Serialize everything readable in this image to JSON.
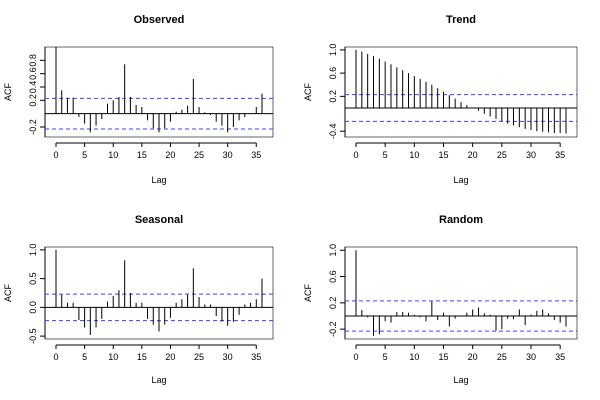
{
  "colors": {
    "spike": "#000000",
    "zero_line": "#000000",
    "confidence": "#4040ff",
    "frame": "#000000"
  },
  "chart_data": [
    {
      "type": "bar",
      "title": "Observed",
      "xlabel": "Lag",
      "ylabel": "ACF",
      "xlim": [
        0,
        36
      ],
      "ylim": [
        -0.35,
        1.0
      ],
      "x_ticks": [
        0,
        5,
        10,
        15,
        20,
        25,
        30,
        35
      ],
      "y_ticks": [
        -0.2,
        0.2,
        0.4,
        0.6,
        0.8
      ],
      "y_tick_labels": [
        "-0.2",
        "0.2",
        "0.4",
        "0.6",
        "0.8"
      ],
      "confidence_band": 0.23,
      "lags": [
        0,
        1,
        2,
        3,
        4,
        5,
        6,
        7,
        8,
        9,
        10,
        11,
        12,
        13,
        14,
        15,
        16,
        17,
        18,
        19,
        20,
        21,
        22,
        23,
        24,
        25,
        26,
        27,
        28,
        29,
        30,
        31,
        32,
        33,
        34,
        35,
        36
      ],
      "values": [
        1.0,
        0.35,
        0.24,
        0.24,
        -0.05,
        -0.15,
        -0.28,
        -0.18,
        -0.08,
        0.15,
        0.2,
        0.25,
        0.74,
        0.25,
        0.13,
        0.1,
        -0.1,
        -0.22,
        -0.28,
        -0.22,
        -0.12,
        0.03,
        0.06,
        0.12,
        0.52,
        0.1,
        0.02,
        -0.02,
        -0.12,
        -0.18,
        -0.28,
        -0.2,
        -0.1,
        -0.05,
        0.0,
        0.1,
        0.3
      ]
    },
    {
      "type": "bar",
      "title": "Trend",
      "xlabel": "Lag",
      "ylabel": "ACF",
      "xlim": [
        0,
        36
      ],
      "ylim": [
        -0.5,
        1.05
      ],
      "x_ticks": [
        0,
        5,
        10,
        15,
        20,
        25,
        30,
        35
      ],
      "y_ticks": [
        -0.4,
        0.2,
        0.6,
        1.0
      ],
      "y_tick_labels": [
        "-0.4",
        "0.2",
        "0.6",
        "1.0"
      ],
      "confidence_band": 0.23,
      "lags": [
        0,
        1,
        2,
        3,
        4,
        5,
        6,
        7,
        8,
        9,
        10,
        11,
        12,
        13,
        14,
        15,
        16,
        17,
        18,
        19,
        20,
        21,
        22,
        23,
        24,
        25,
        26,
        27,
        28,
        29,
        30,
        31,
        32,
        33,
        34,
        35,
        36
      ],
      "values": [
        1.0,
        0.97,
        0.93,
        0.89,
        0.85,
        0.8,
        0.75,
        0.7,
        0.65,
        0.6,
        0.55,
        0.5,
        0.45,
        0.4,
        0.34,
        0.28,
        0.22,
        0.16,
        0.1,
        0.05,
        0.0,
        -0.05,
        -0.1,
        -0.15,
        -0.19,
        -0.23,
        -0.27,
        -0.3,
        -0.33,
        -0.36,
        -0.38,
        -0.4,
        -0.41,
        -0.42,
        -0.43,
        -0.43,
        -0.44
      ]
    },
    {
      "type": "bar",
      "title": "Seasonal",
      "xlabel": "Lag",
      "ylabel": "ACF",
      "xlim": [
        0,
        36
      ],
      "ylim": [
        -0.55,
        1.05
      ],
      "x_ticks": [
        0,
        5,
        10,
        15,
        20,
        25,
        30,
        35
      ],
      "y_ticks": [
        -0.5,
        0.0,
        0.5,
        1.0
      ],
      "y_tick_labels": [
        "-0.5",
        "0.0",
        "0.5",
        "1.0"
      ],
      "confidence_band": 0.23,
      "lags": [
        0,
        1,
        2,
        3,
        4,
        5,
        6,
        7,
        8,
        9,
        10,
        11,
        12,
        13,
        14,
        15,
        16,
        17,
        18,
        19,
        20,
        21,
        22,
        23,
        24,
        25,
        26,
        27,
        28,
        29,
        30,
        31,
        32,
        33,
        34,
        35,
        36
      ],
      "values": [
        1.0,
        0.22,
        0.08,
        0.08,
        -0.22,
        -0.35,
        -0.48,
        -0.35,
        -0.2,
        0.1,
        0.2,
        0.3,
        0.82,
        0.25,
        0.08,
        0.08,
        -0.2,
        -0.3,
        -0.42,
        -0.3,
        -0.18,
        0.08,
        0.14,
        0.22,
        0.68,
        0.18,
        0.05,
        0.05,
        -0.15,
        -0.25,
        -0.32,
        -0.25,
        -0.13,
        0.05,
        0.08,
        0.14,
        0.5
      ]
    },
    {
      "type": "bar",
      "title": "Random",
      "xlabel": "Lag",
      "ylabel": "ACF",
      "xlim": [
        0,
        36
      ],
      "ylim": [
        -0.35,
        1.05
      ],
      "x_ticks": [
        0,
        5,
        10,
        15,
        20,
        25,
        30,
        35
      ],
      "y_ticks": [
        -0.2,
        0.2,
        0.6,
        1.0
      ],
      "y_tick_labels": [
        "-0.2",
        "0.2",
        "0.6",
        "1.0"
      ],
      "confidence_band": 0.23,
      "lags": [
        0,
        1,
        2,
        3,
        4,
        5,
        6,
        7,
        8,
        9,
        10,
        11,
        12,
        13,
        14,
        15,
        16,
        17,
        18,
        19,
        20,
        21,
        22,
        23,
        24,
        25,
        26,
        27,
        28,
        29,
        30,
        31,
        32,
        33,
        34,
        35,
        36
      ],
      "values": [
        1.0,
        0.09,
        -0.02,
        -0.3,
        -0.28,
        -0.08,
        -0.1,
        0.06,
        0.06,
        0.05,
        0.02,
        -0.02,
        -0.08,
        0.22,
        -0.06,
        0.05,
        -0.16,
        -0.04,
        0.0,
        0.05,
        0.1,
        0.13,
        0.04,
        0.02,
        -0.22,
        -0.2,
        -0.04,
        -0.05,
        0.1,
        -0.14,
        0.02,
        0.08,
        0.1,
        0.04,
        -0.06,
        -0.1,
        -0.16
      ]
    }
  ]
}
